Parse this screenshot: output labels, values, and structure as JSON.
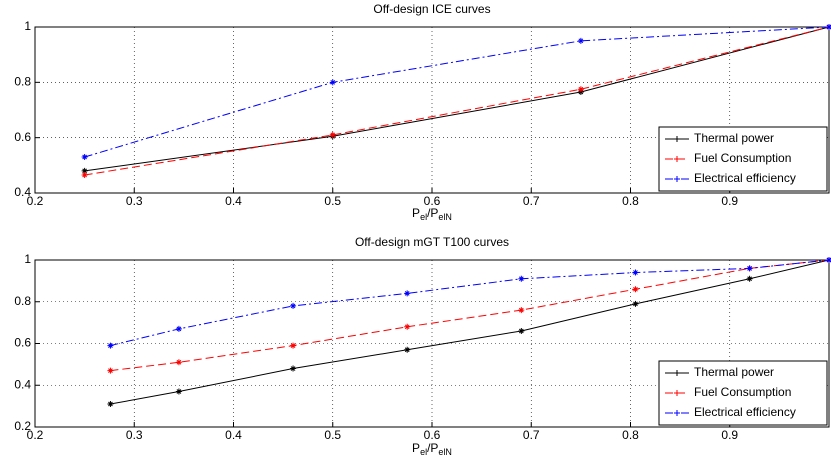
{
  "chart_data": [
    {
      "type": "line",
      "title": "Off-design ICE curves",
      "xlabel": [
        "P",
        "el",
        "/P",
        "elN"
      ],
      "x": [
        0.25,
        0.5,
        0.75,
        1.0
      ],
      "series": [
        {
          "name": "Thermal power",
          "color": "#000000",
          "dash": "solid",
          "values": [
            0.48,
            0.605,
            0.765,
            1.0
          ]
        },
        {
          "name": "Fuel Consumption",
          "color": "#ff0000",
          "dash": "dashed",
          "values": [
            0.465,
            0.61,
            0.775,
            1.0
          ]
        },
        {
          "name": "Electrical efficiency",
          "color": "#0000ff",
          "dash": "dashdot",
          "values": [
            0.53,
            0.8,
            0.95,
            1.0
          ]
        }
      ],
      "xlim": [
        0.2,
        1.0
      ],
      "xticks": [
        0.2,
        0.3,
        0.4,
        0.5,
        0.6,
        0.7,
        0.8,
        0.9
      ],
      "ylim": [
        0.4,
        1
      ],
      "yticks": [
        0.4,
        0.6,
        0.8,
        1
      ],
      "grid": true,
      "legend": "lower right"
    },
    {
      "type": "line",
      "title": "Off-design mGT T100 curves",
      "xlabel": [
        "P",
        "el",
        "/P",
        "elN"
      ],
      "x": [
        0.276,
        0.345,
        0.46,
        0.575,
        0.69,
        0.805,
        0.92,
        1.0
      ],
      "series": [
        {
          "name": "Thermal power",
          "color": "#000000",
          "dash": "solid",
          "values": [
            0.31,
            0.37,
            0.48,
            0.57,
            0.66,
            0.79,
            0.91,
            1.0
          ]
        },
        {
          "name": "Fuel Consumption",
          "color": "#ff0000",
          "dash": "dashed",
          "values": [
            0.47,
            0.51,
            0.59,
            0.68,
            0.76,
            0.86,
            0.96,
            1.0
          ]
        },
        {
          "name": "Electrical efficiency",
          "color": "#0000ff",
          "dash": "dashdot",
          "values": [
            0.59,
            0.67,
            0.78,
            0.84,
            0.91,
            0.94,
            0.96,
            1.0
          ]
        }
      ],
      "xlim": [
        0.2,
        1.0
      ],
      "xticks": [
        0.2,
        0.3,
        0.4,
        0.5,
        0.6,
        0.7,
        0.8,
        0.9
      ],
      "ylim": [
        0.2,
        1
      ],
      "yticks": [
        0.2,
        0.4,
        0.6,
        0.8,
        1
      ],
      "grid": true,
      "legend": "lower right"
    }
  ]
}
